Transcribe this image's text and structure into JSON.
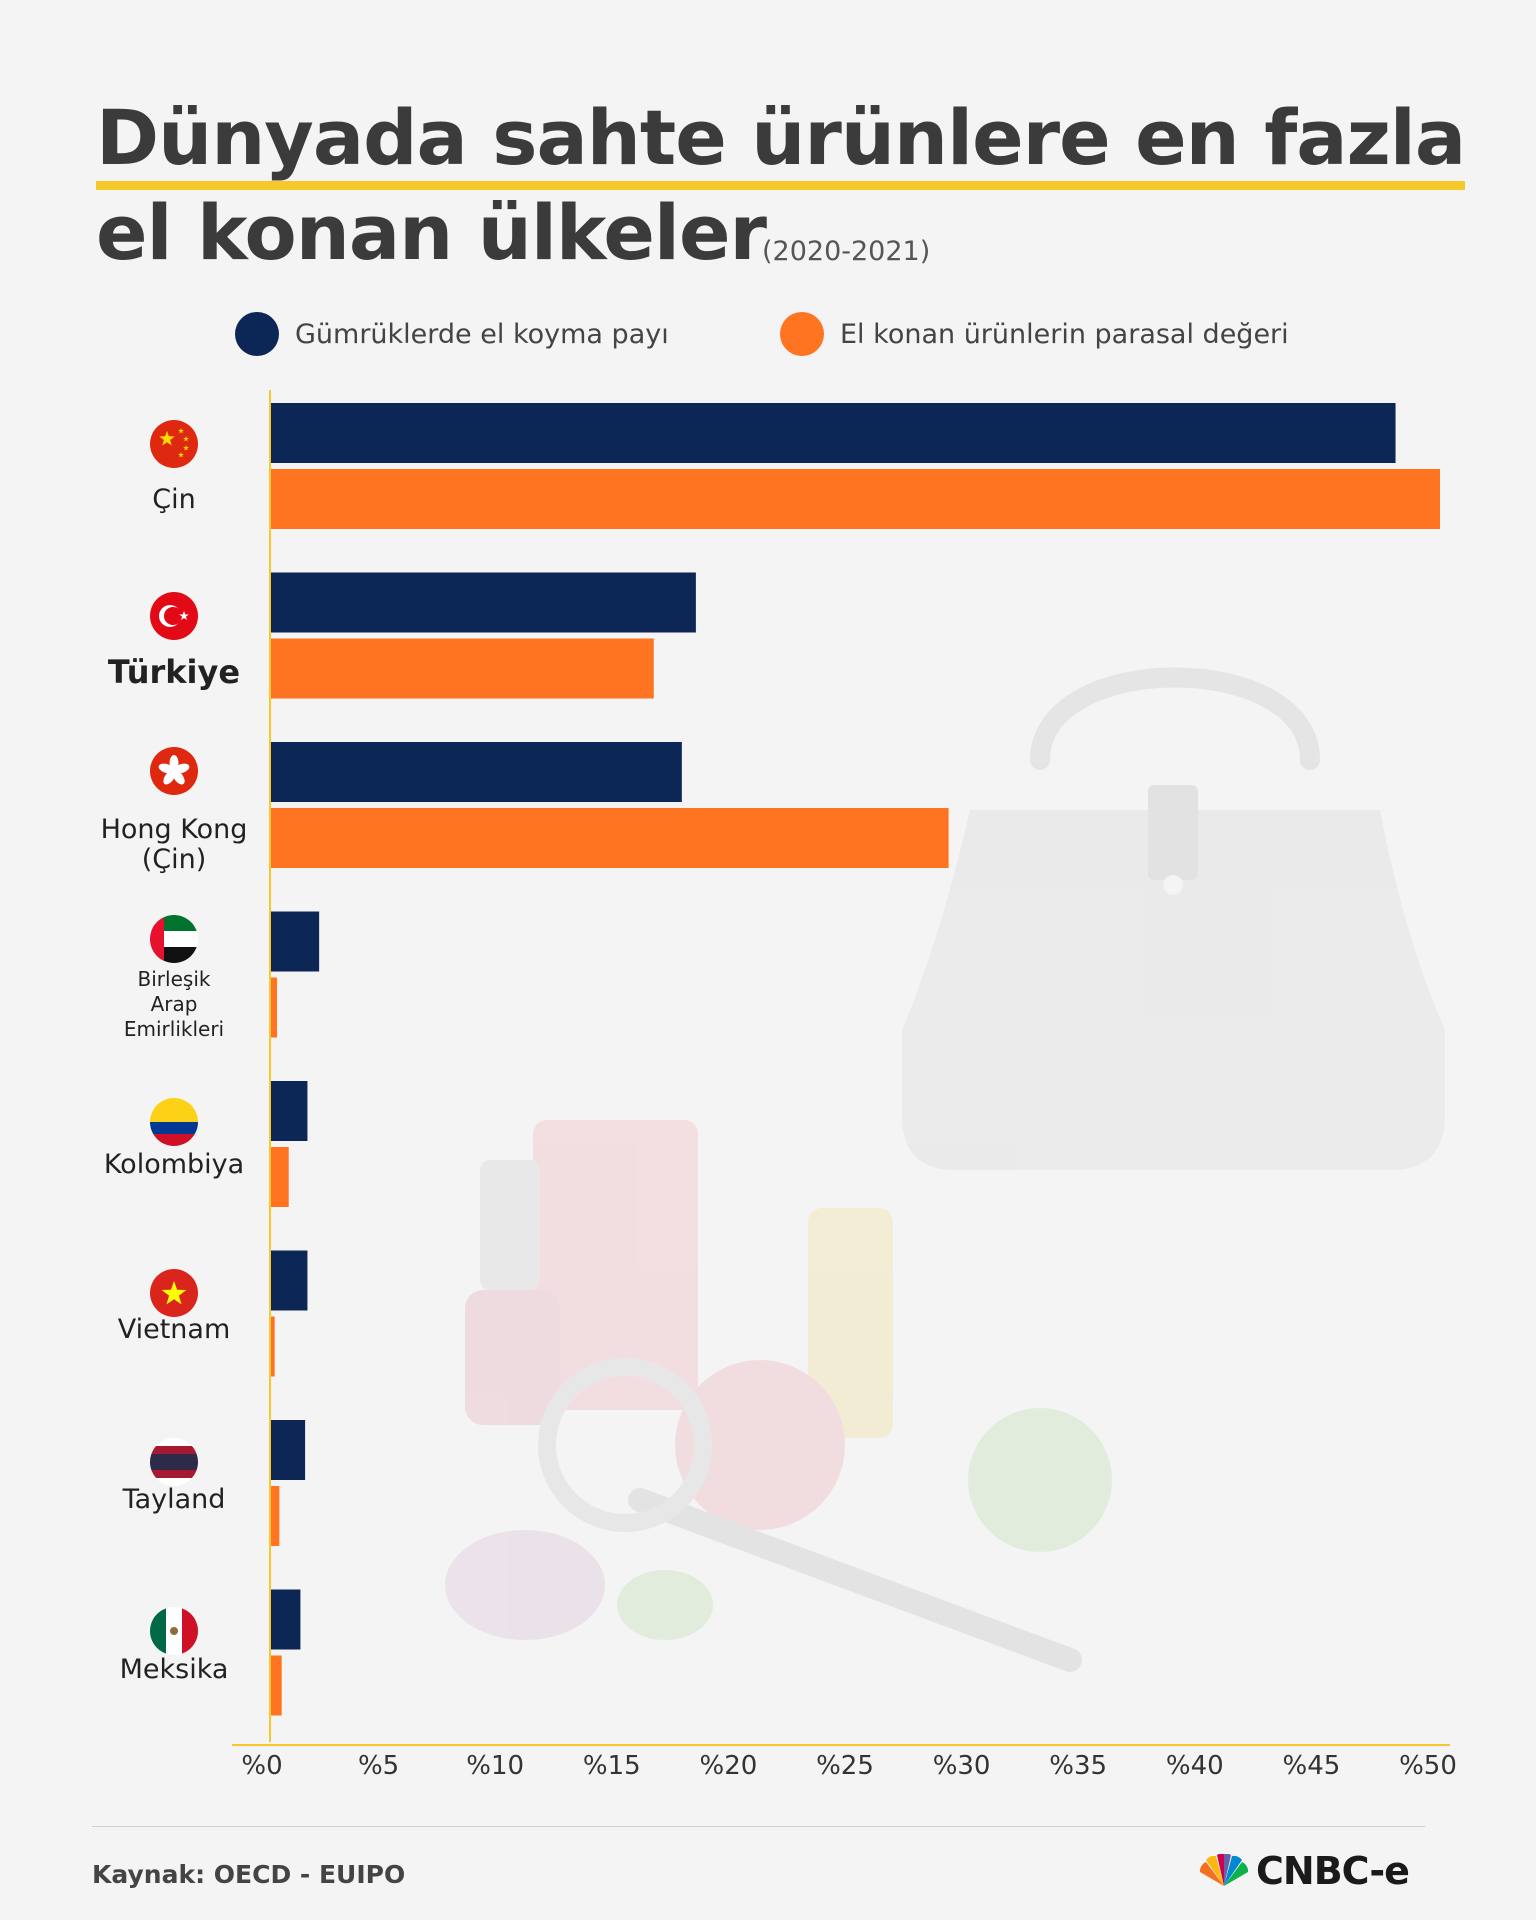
{
  "title_line1": "Dünyada sahte ürünlere en fazla",
  "title_line2": "el konan ülkeler",
  "subtitle": "(2020-2021)",
  "colors": {
    "series1": "#0c2756",
    "series2": "#ff7420",
    "axis": "#f5c92b",
    "title_underline": "#f5c92b"
  },
  "source": "Kaynak: OECD - EUIPO",
  "logo_text": "CNBC-e",
  "chart_data": {
    "type": "bar",
    "orientation": "horizontal",
    "categories": [
      "Çin",
      "Türkiye",
      "Hong Kong (Çin)",
      "Birleşik Arap Emirlikleri",
      "Kolombiya",
      "Vietnam",
      "Tayland",
      "Meksika"
    ],
    "category_lines": [
      [
        "Çin"
      ],
      [
        "Türkiye"
      ],
      [
        "Hong Kong",
        "(Çin)"
      ],
      [
        "Birleşik",
        "Arap",
        "Emirlikleri"
      ],
      [
        "Kolombiya"
      ],
      [
        "Vietnam"
      ],
      [
        "Tayland"
      ],
      [
        "Meksika"
      ]
    ],
    "category_flags": [
      "china-flag-icon",
      "turkey-flag-icon",
      "hongkong-flag-icon",
      "uae-flag-icon",
      "colombia-flag-icon",
      "vietnam-flag-icon",
      "thailand-flag-icon",
      "mexico-flag-icon"
    ],
    "highlight_category": "Türkiye",
    "series": [
      {
        "name": "Gümrüklerde el koyma payı",
        "color": "#0c2756",
        "values": [
          48.1,
          18.2,
          17.6,
          2.1,
          1.6,
          1.6,
          1.5,
          1.3
        ]
      },
      {
        "name": "El konan ürünlerin parasal değeri",
        "color": "#ff7420",
        "values": [
          50.0,
          16.4,
          29.0,
          0.3,
          0.8,
          0.2,
          0.4,
          0.5
        ]
      }
    ],
    "xlim": [
      0,
      50
    ],
    "ticks": [
      0,
      5,
      10,
      15,
      20,
      25,
      30,
      35,
      40,
      45,
      50
    ],
    "tick_labels": [
      "%0",
      "%5",
      "%10",
      "%15",
      "%20",
      "%25",
      "%30",
      "%35",
      "%40",
      "%45",
      "%50"
    ],
    "legend_position": "top",
    "grid": false
  }
}
